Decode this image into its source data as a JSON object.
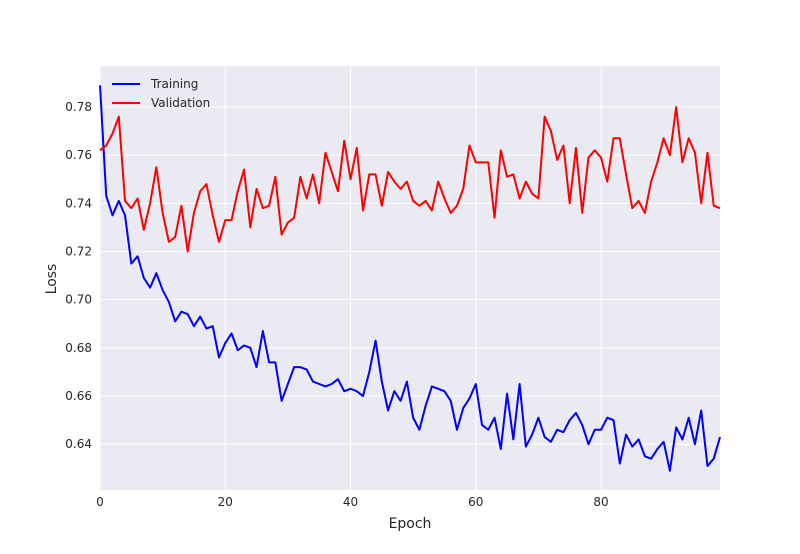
{
  "chart_data": {
    "type": "line",
    "title": "",
    "xlabel": "Epoch",
    "ylabel": "Loss",
    "xlim": [
      0,
      99
    ],
    "ylim": [
      0.621,
      0.797
    ],
    "xticks": [
      0,
      20,
      40,
      60,
      80
    ],
    "xtick_labels": [
      "0",
      "20",
      "40",
      "60",
      "80"
    ],
    "yticks": [
      0.64,
      0.66,
      0.68,
      0.7,
      0.72,
      0.74,
      0.76,
      0.78
    ],
    "ytick_labels": [
      "0.64",
      "0.66",
      "0.68",
      "0.70",
      "0.72",
      "0.74",
      "0.76",
      "0.78"
    ],
    "grid": true,
    "legend_position": "top-left",
    "x": [
      0,
      1,
      2,
      3,
      4,
      5,
      6,
      7,
      8,
      9,
      10,
      11,
      12,
      13,
      14,
      15,
      16,
      17,
      18,
      19,
      20,
      21,
      22,
      23,
      24,
      25,
      26,
      27,
      28,
      29,
      30,
      31,
      32,
      33,
      34,
      35,
      36,
      37,
      38,
      39,
      40,
      41,
      42,
      43,
      44,
      45,
      46,
      47,
      48,
      49,
      50,
      51,
      52,
      53,
      54,
      55,
      56,
      57,
      58,
      59,
      60,
      61,
      62,
      63,
      64,
      65,
      66,
      67,
      68,
      69,
      70,
      71,
      72,
      73,
      74,
      75,
      76,
      77,
      78,
      79,
      80,
      81,
      82,
      83,
      84,
      85,
      86,
      87,
      88,
      89,
      90,
      91,
      92,
      93,
      94,
      95,
      96,
      97,
      98,
      99
    ],
    "series": [
      {
        "name": "Training",
        "color": "#0000ff",
        "values": [
          0.789,
          0.743,
          0.735,
          0.741,
          0.735,
          0.715,
          0.718,
          0.709,
          0.705,
          0.711,
          0.704,
          0.699,
          0.691,
          0.695,
          0.694,
          0.689,
          0.693,
          0.688,
          0.689,
          0.676,
          0.682,
          0.686,
          0.679,
          0.681,
          0.68,
          0.672,
          0.687,
          0.674,
          0.674,
          0.658,
          0.665,
          0.672,
          0.672,
          0.671,
          0.666,
          0.665,
          0.664,
          0.665,
          0.667,
          0.662,
          0.663,
          0.662,
          0.66,
          0.67,
          0.683,
          0.666,
          0.654,
          0.662,
          0.658,
          0.666,
          0.651,
          0.646,
          0.656,
          0.664,
          0.663,
          0.662,
          0.658,
          0.646,
          0.655,
          0.659,
          0.665,
          0.648,
          0.646,
          0.651,
          0.638,
          0.661,
          0.642,
          0.665,
          0.639,
          0.644,
          0.651,
          0.643,
          0.641,
          0.646,
          0.645,
          0.65,
          0.653,
          0.648,
          0.64,
          0.646,
          0.646,
          0.651,
          0.65,
          0.632,
          0.644,
          0.639,
          0.642,
          0.635,
          0.634,
          0.638,
          0.641,
          0.629,
          0.647,
          0.642,
          0.651,
          0.64,
          0.654,
          0.631,
          0.634,
          0.643
        ]
      },
      {
        "name": "Validation",
        "color": "#ff0000",
        "values": [
          0.762,
          0.764,
          0.769,
          0.776,
          0.741,
          0.738,
          0.742,
          0.729,
          0.74,
          0.755,
          0.736,
          0.724,
          0.726,
          0.739,
          0.72,
          0.736,
          0.745,
          0.748,
          0.735,
          0.724,
          0.733,
          0.733,
          0.745,
          0.754,
          0.73,
          0.746,
          0.738,
          0.739,
          0.751,
          0.727,
          0.732,
          0.734,
          0.751,
          0.742,
          0.752,
          0.74,
          0.761,
          0.753,
          0.745,
          0.766,
          0.75,
          0.763,
          0.737,
          0.752,
          0.752,
          0.739,
          0.753,
          0.749,
          0.746,
          0.749,
          0.741,
          0.739,
          0.741,
          0.737,
          0.749,
          0.742,
          0.736,
          0.739,
          0.746,
          0.764,
          0.757,
          0.757,
          0.757,
          0.734,
          0.762,
          0.751,
          0.752,
          0.742,
          0.749,
          0.744,
          0.742,
          0.776,
          0.77,
          0.758,
          0.764,
          0.74,
          0.763,
          0.736,
          0.759,
          0.762,
          0.759,
          0.749,
          0.767,
          0.767,
          0.752,
          0.738,
          0.741,
          0.736,
          0.749,
          0.757,
          0.767,
          0.76,
          0.78,
          0.757,
          0.767,
          0.761,
          0.74,
          0.761,
          0.739,
          0.738
        ]
      }
    ]
  }
}
